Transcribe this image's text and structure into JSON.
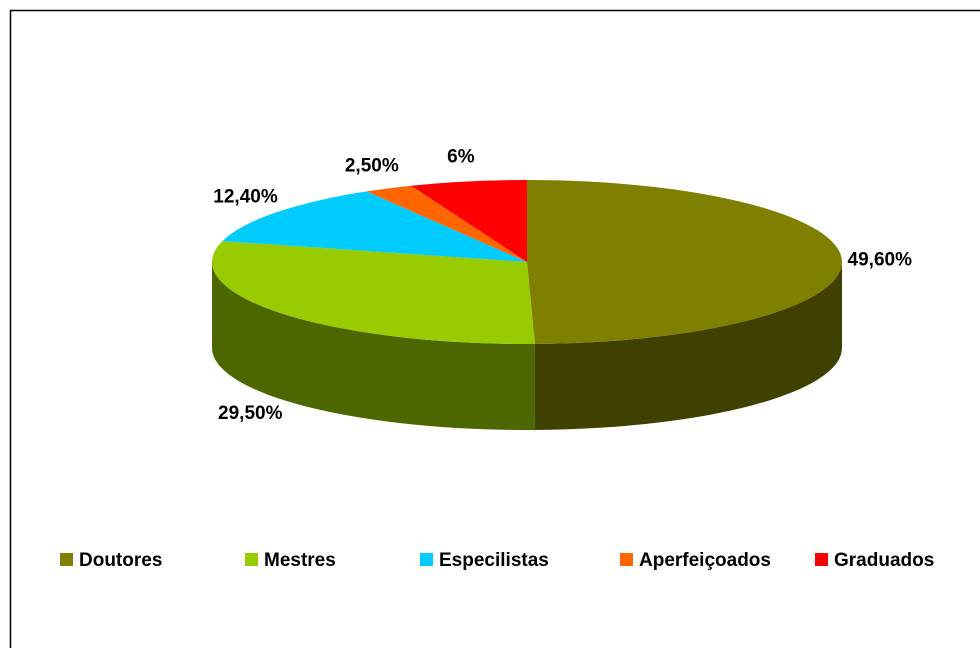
{
  "chart_data": {
    "type": "pie3d",
    "categories": [
      "Doutores",
      "Mestres",
      "Especilistas",
      "Aperfeiçoados",
      "Graduados"
    ],
    "values": [
      49.6,
      29.5,
      12.4,
      2.5,
      6
    ],
    "value_labels": [
      "49,60%",
      "29,50%",
      "12,40%",
      "2,50%",
      "6%"
    ],
    "colors": [
      "#808000",
      "#99cc00",
      "#00ccff",
      "#ff6600",
      "#ff0000"
    ],
    "legend": "bottom"
  }
}
